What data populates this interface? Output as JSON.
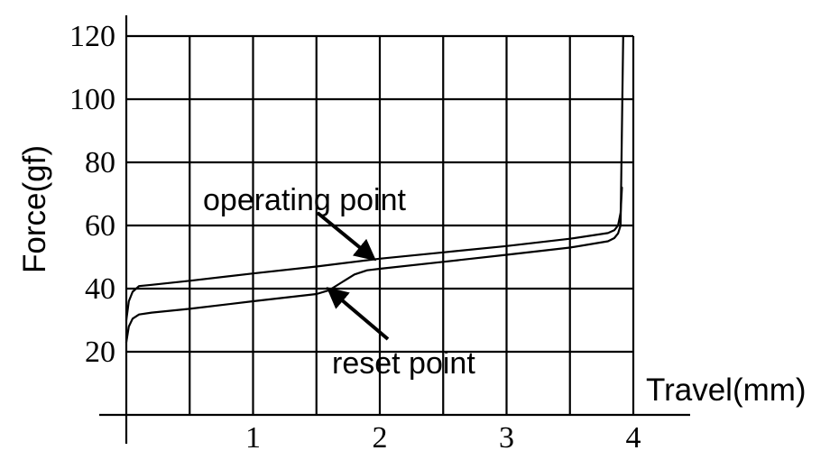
{
  "chart_data": {
    "type": "line",
    "xlabel": "Travel(mm)",
    "ylabel": "Force(gf)",
    "xlim": [
      0,
      4
    ],
    "ylim": [
      0,
      120
    ],
    "x_ticks": [
      "1",
      "2",
      "3",
      "4"
    ],
    "y_ticks": [
      "20",
      "40",
      "60",
      "80",
      "100",
      "120"
    ],
    "grid": true,
    "series": [
      {
        "x": [
          0.0,
          0.02,
          0.05,
          0.1,
          0.2,
          0.5,
          1.0,
          1.5,
          2.0,
          2.5,
          3.0,
          3.5,
          3.8,
          3.85,
          3.88,
          3.9,
          3.91
        ],
        "y": [
          30,
          36,
          39,
          40.8,
          41.2,
          42.5,
          44.8,
          47.0,
          49.5,
          51.5,
          53.5,
          55.8,
          57.6,
          58.5,
          60,
          64,
          72
        ]
      },
      {
        "x": [
          0.0,
          0.02,
          0.05,
          0.1,
          0.2,
          0.5,
          1.0,
          1.5,
          1.6,
          1.7,
          1.8,
          1.9,
          2.0,
          2.5,
          3.0,
          3.5,
          3.8,
          3.85,
          3.88,
          3.9,
          3.92
        ],
        "y": [
          23,
          28,
          30.5,
          31.8,
          32.4,
          33.6,
          36,
          38.3,
          39.5,
          42,
          44.5,
          45.8,
          46.3,
          48.5,
          50.7,
          53,
          55,
          56,
          57.5,
          60,
          140
        ]
      }
    ],
    "annotations": [
      {
        "text": "operating point",
        "target": [
          1.95,
          49.5
        ]
      },
      {
        "text": "reset point",
        "target": [
          1.6,
          39.8
        ]
      }
    ]
  }
}
